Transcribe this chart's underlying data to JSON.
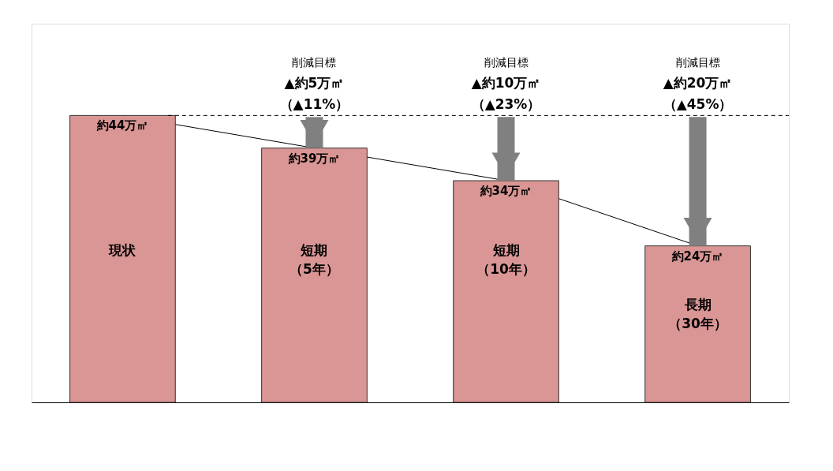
{
  "chart_data": {
    "type": "bar",
    "categories": [
      "現状",
      "短期（5年）",
      "短期（10年）",
      "長期（30年）"
    ],
    "values": [
      44,
      39,
      34,
      24
    ],
    "value_labels": [
      "約44万㎡",
      "約39万㎡",
      "約34万㎡",
      "約24万㎡"
    ],
    "color": "#d99694",
    "ref_lines": [
      {
        "axis": "y",
        "value": 44,
        "line_style": "dashed",
        "color": "#000000"
      }
    ],
    "annotations": [
      "削減目標",
      "▲約5万㎡",
      "（▲11%）",
      "削減目標",
      "▲約10万㎡",
      "（▲23%）",
      "削減目標",
      "▲約20万㎡",
      "（▲45%）"
    ]
  }
}
